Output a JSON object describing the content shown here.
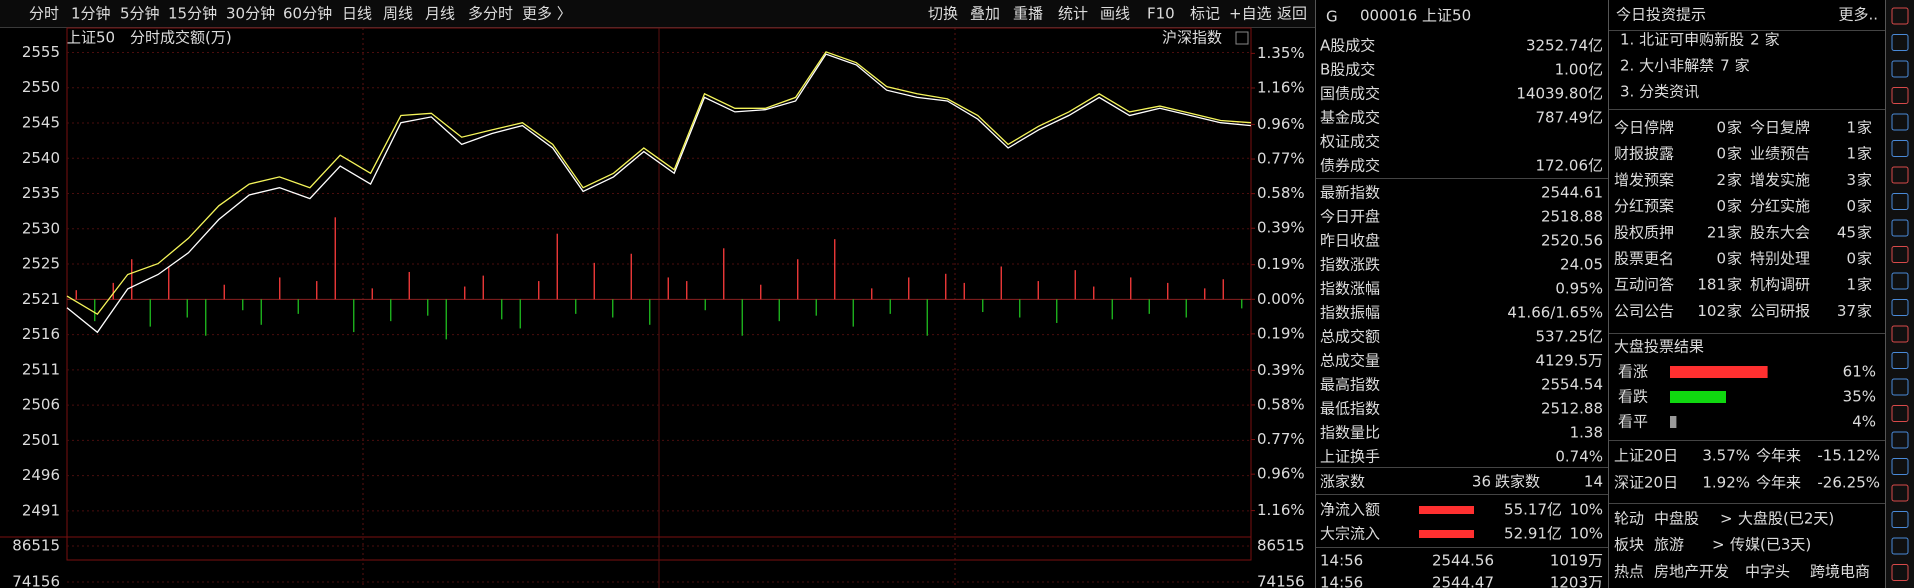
{
  "toolbar": {
    "left": [
      "分时",
      "1分钟",
      "5分钟",
      "15分钟",
      "30分钟",
      "60分钟",
      "日线",
      "周线",
      "月线",
      "多分时",
      "更多 〉"
    ],
    "right": [
      "切换",
      "叠加",
      "重播",
      "统计",
      "画线",
      "F10",
      "标记",
      "+自选",
      "返回"
    ]
  },
  "chart_header": {
    "name": "上证50",
    "mode": "分时",
    "indicator": "成交额(万)",
    "overlay": "沪深指数"
  },
  "chart_data": [
    {
      "type": "line",
      "ylim": [
        2488.5,
        2555.2
      ],
      "yticks": [
        {
          "value": 2554.72,
          "label": "2555"
        },
        {
          "value": 2549.84,
          "label": "2550"
        },
        {
          "value": 2544.96,
          "label": "2545"
        },
        {
          "value": 2540.08,
          "label": "2540"
        },
        {
          "value": 2535.2,
          "label": "2535"
        },
        {
          "value": 2530.32,
          "label": "2530"
        },
        {
          "value": 2525.44,
          "label": "2525"
        },
        {
          "value": 2520.56,
          "label": "2521"
        },
        {
          "value": 2515.68,
          "label": "2516"
        },
        {
          "value": 2510.8,
          "label": "2511"
        },
        {
          "value": 2505.92,
          "label": "2506"
        },
        {
          "value": 2501.04,
          "label": "2501"
        },
        {
          "value": 2496.16,
          "label": "2496"
        },
        {
          "value": 2491.28,
          "label": "2491"
        }
      ],
      "y2lim": [
        -1.272,
        1.374
      ],
      "y2ticks": [
        {
          "value": 1.35,
          "label": "1.35%"
        },
        {
          "value": 1.16,
          "label": "1.16%"
        },
        {
          "value": 0.96,
          "label": "0.96%"
        },
        {
          "value": 0.77,
          "label": "0.77%"
        },
        {
          "value": 0.58,
          "label": "0.58%"
        },
        {
          "value": 0.39,
          "label": "0.39%"
        },
        {
          "value": 0.19,
          "label": "0.19%"
        },
        {
          "value": 0,
          "label": "0.00%"
        },
        {
          "value": -0.19,
          "label": "0.19%"
        },
        {
          "value": -0.39,
          "label": "0.39%"
        },
        {
          "value": -0.58,
          "label": "0.58%"
        },
        {
          "value": -0.77,
          "label": "0.77%"
        },
        {
          "value": -0.96,
          "label": "0.96%"
        },
        {
          "value": -1.16,
          "label": "1.16%"
        }
      ],
      "grid": true,
      "series": [
        {
          "color": "#ffffff",
          "values": [
            2519.4,
            2516.0,
            2522.0,
            2524.0,
            2527.0,
            2531.6,
            2535.0,
            2536.0,
            2534.5,
            2539.0,
            2536.5,
            2545.0,
            2545.8,
            2542.0,
            2543.5,
            2544.6,
            2541.5,
            2535.5,
            2537.5,
            2541.0,
            2538.0,
            2548.5,
            2546.5,
            2546.8,
            2548.0,
            2554.5,
            2553.0,
            2549.5,
            2548.5,
            2548.0,
            2545.5,
            2541.5,
            2544.0,
            2546.0,
            2548.5,
            2546.0,
            2547.0,
            2546.0,
            2545.0,
            2544.6
          ]
        },
        {
          "color": "#f5f55a",
          "values": [
            2521.0,
            2518.5,
            2524.0,
            2525.5,
            2529.0,
            2533.5,
            2536.5,
            2537.5,
            2536.0,
            2540.5,
            2538.0,
            2546.0,
            2546.3,
            2543.0,
            2544.0,
            2545.0,
            2542.0,
            2536.0,
            2538.0,
            2541.5,
            2538.5,
            2549.0,
            2547.0,
            2547.0,
            2548.5,
            2554.8,
            2553.3,
            2550.0,
            2549.0,
            2548.3,
            2546.0,
            2542.0,
            2544.5,
            2546.5,
            2549.0,
            2546.5,
            2547.3,
            2546.3,
            2545.3,
            2545.0
          ]
        }
      ],
      "bars": {
        "axis": "y2",
        "up_color": "#ff3c3c",
        "down_color": "#1fbf1f",
        "values": [
          0.05,
          -0.12,
          0.09,
          0.22,
          -0.15,
          0.18,
          -0.1,
          -0.2,
          0.08,
          -0.06,
          -0.14,
          0.12,
          -0.08,
          0.1,
          0.45,
          -0.18,
          0.06,
          -0.12,
          0.15,
          -0.09,
          -0.22,
          0.07,
          0.13,
          -0.11,
          -0.16,
          0.1,
          0.36,
          -0.08,
          0.2,
          -0.1,
          0.25,
          -0.14,
          0.12,
          0.1,
          -0.06,
          0.28,
          -0.2,
          0.08,
          -0.12,
          0.22,
          -0.09,
          0.33,
          -0.15,
          0.06,
          -0.08,
          0.12,
          -0.2,
          0.14,
          0.09,
          -0.07,
          0.18,
          -0.1,
          0.1,
          -0.13,
          0.16,
          0.07,
          -0.11,
          0.12,
          -0.08,
          0.09,
          -0.1,
          0.06,
          0.11,
          -0.05
        ]
      }
    },
    {
      "type": "bar",
      "ylim": [
        72100,
        89600
      ],
      "yticks": [
        86515,
        74156
      ],
      "color": "#c8c832"
    }
  ],
  "quote": {
    "flag": "G",
    "title": "000016 上证50",
    "group1": [
      {
        "label": "A股成交",
        "value": "3252.74亿",
        "color": "#e8c84a"
      },
      {
        "label": "B股成交",
        "value": "1.00亿",
        "color": "#e8c84a"
      },
      {
        "label": "国债成交",
        "value": "14039.80亿",
        "color": "#e8c84a"
      },
      {
        "label": "基金成交",
        "value": "787.49亿",
        "color": "#e8c84a"
      },
      {
        "label": "权证成交"
      },
      {
        "label": "债券成交",
        "value": "172.06亿",
        "color": "#e8c84a"
      }
    ],
    "group2": [
      {
        "label": "最新指数",
        "value": "2544.61",
        "color": "#ff3c3c"
      },
      {
        "label": "今日开盘",
        "value": "2518.88",
        "color": "#2ee02e"
      },
      {
        "label": "昨日收盘",
        "value": "2520.56",
        "color": "#e0e0e0"
      },
      {
        "label": "指数涨跌",
        "value": "24.05",
        "color": "#ff3c3c"
      },
      {
        "label": "指数涨幅",
        "value": "0.95%",
        "color": "#ff3c3c"
      },
      {
        "label": "指数振幅",
        "value": "41.66/1.65%",
        "color": "#e0e0e0"
      },
      {
        "label": "总成交额",
        "value": "537.25亿",
        "color": "#e8c84a"
      },
      {
        "label": "总成交量",
        "value": "4129.5万",
        "color": "#e8c84a"
      },
      {
        "label": "最高指数",
        "value": "2554.54",
        "color": "#ff3c3c"
      },
      {
        "label": "最低指数",
        "value": "2512.88",
        "color": "#ff3c3c"
      },
      {
        "label": "指数量比",
        "value": "1.38",
        "color": "#ff3c3c"
      },
      {
        "label": "上证换手",
        "value": "0.74%",
        "color": "#e0e0e0"
      }
    ],
    "breadth": {
      "up_label": "涨家数",
      "up": "36",
      "down_label": "跌家数",
      "down": "14"
    },
    "flows": [
      {
        "label": "净流入额",
        "value": "55.17亿",
        "pct": "10%"
      },
      {
        "label": "大宗流入",
        "value": "52.91亿",
        "pct": "10%"
      }
    ],
    "ticks": [
      {
        "time": "14:56",
        "price": "2544.56",
        "volume": "1019万"
      },
      {
        "time": "14:56",
        "price": "2544.47",
        "volume": "1203万"
      }
    ]
  },
  "tips": {
    "title": "今日投资提示",
    "more": "更多..",
    "items": [
      {
        "text": "1. 北证可申购新股",
        "count": "2",
        "unit": "家"
      },
      {
        "text": "2. 大小非解禁",
        "count": "7",
        "unit": "家"
      },
      {
        "text": "3. 分类资讯"
      }
    ],
    "stats": [
      {
        "label": "今日停牌",
        "count": "0",
        "unit": "家"
      },
      {
        "label": "今日复牌",
        "count": "1",
        "unit": "家"
      },
      {
        "label": "财报披露",
        "count": "0",
        "unit": "家"
      },
      {
        "label": "业绩预告",
        "count": "1",
        "unit": "家"
      },
      {
        "label": "增发预案",
        "count": "2",
        "unit": "家"
      },
      {
        "label": "增发实施",
        "count": "3",
        "unit": "家"
      },
      {
        "label": "分红预案",
        "count": "0",
        "unit": "家"
      },
      {
        "label": "分红实施",
        "count": "0",
        "unit": "家"
      },
      {
        "label": "股权质押",
        "count": "21",
        "unit": "家"
      },
      {
        "label": "股东大会",
        "count": "45",
        "unit": "家"
      },
      {
        "label": "股票更名",
        "count": "0",
        "unit": "家"
      },
      {
        "label": "特别处理",
        "count": "0",
        "unit": "家"
      },
      {
        "label": "互动问答",
        "count": "181",
        "unit": "家"
      },
      {
        "label": "机构调研",
        "count": "1",
        "unit": "家"
      },
      {
        "label": "公司公告",
        "count": "102",
        "unit": "家"
      },
      {
        "label": "公司研报",
        "count": "37",
        "unit": "家"
      }
    ],
    "vote_title": "大盘投票结果",
    "votes": [
      {
        "name": "看涨",
        "value": 61,
        "label": "61%",
        "color": "#ff3030"
      },
      {
        "name": "看跌",
        "value": 35,
        "label": "35%",
        "color": "#10d810"
      },
      {
        "name": "看平",
        "value": 4,
        "label": "4%",
        "color": "#9a9a9a"
      }
    ],
    "indices": [
      {
        "name": "上证20日",
        "d20": "3.57%",
        "ytd_label": "今年来",
        "ytd": "-15.12%"
      },
      {
        "name": "深证20日",
        "d20": "1.92%",
        "ytd_label": "今年来",
        "ytd": "-26.25%"
      }
    ],
    "rotation": [
      {
        "label": "轮动",
        "from": "中盘股",
        "arrow": ">",
        "to": "大盘股(已2天)"
      },
      {
        "label": "板块",
        "from": "旅游",
        "arrow": ">",
        "to": "传媒(已3天)"
      }
    ],
    "hot": {
      "label": "热点",
      "items": [
        "房地产开发",
        "中字头",
        "跨境电商"
      ]
    }
  }
}
